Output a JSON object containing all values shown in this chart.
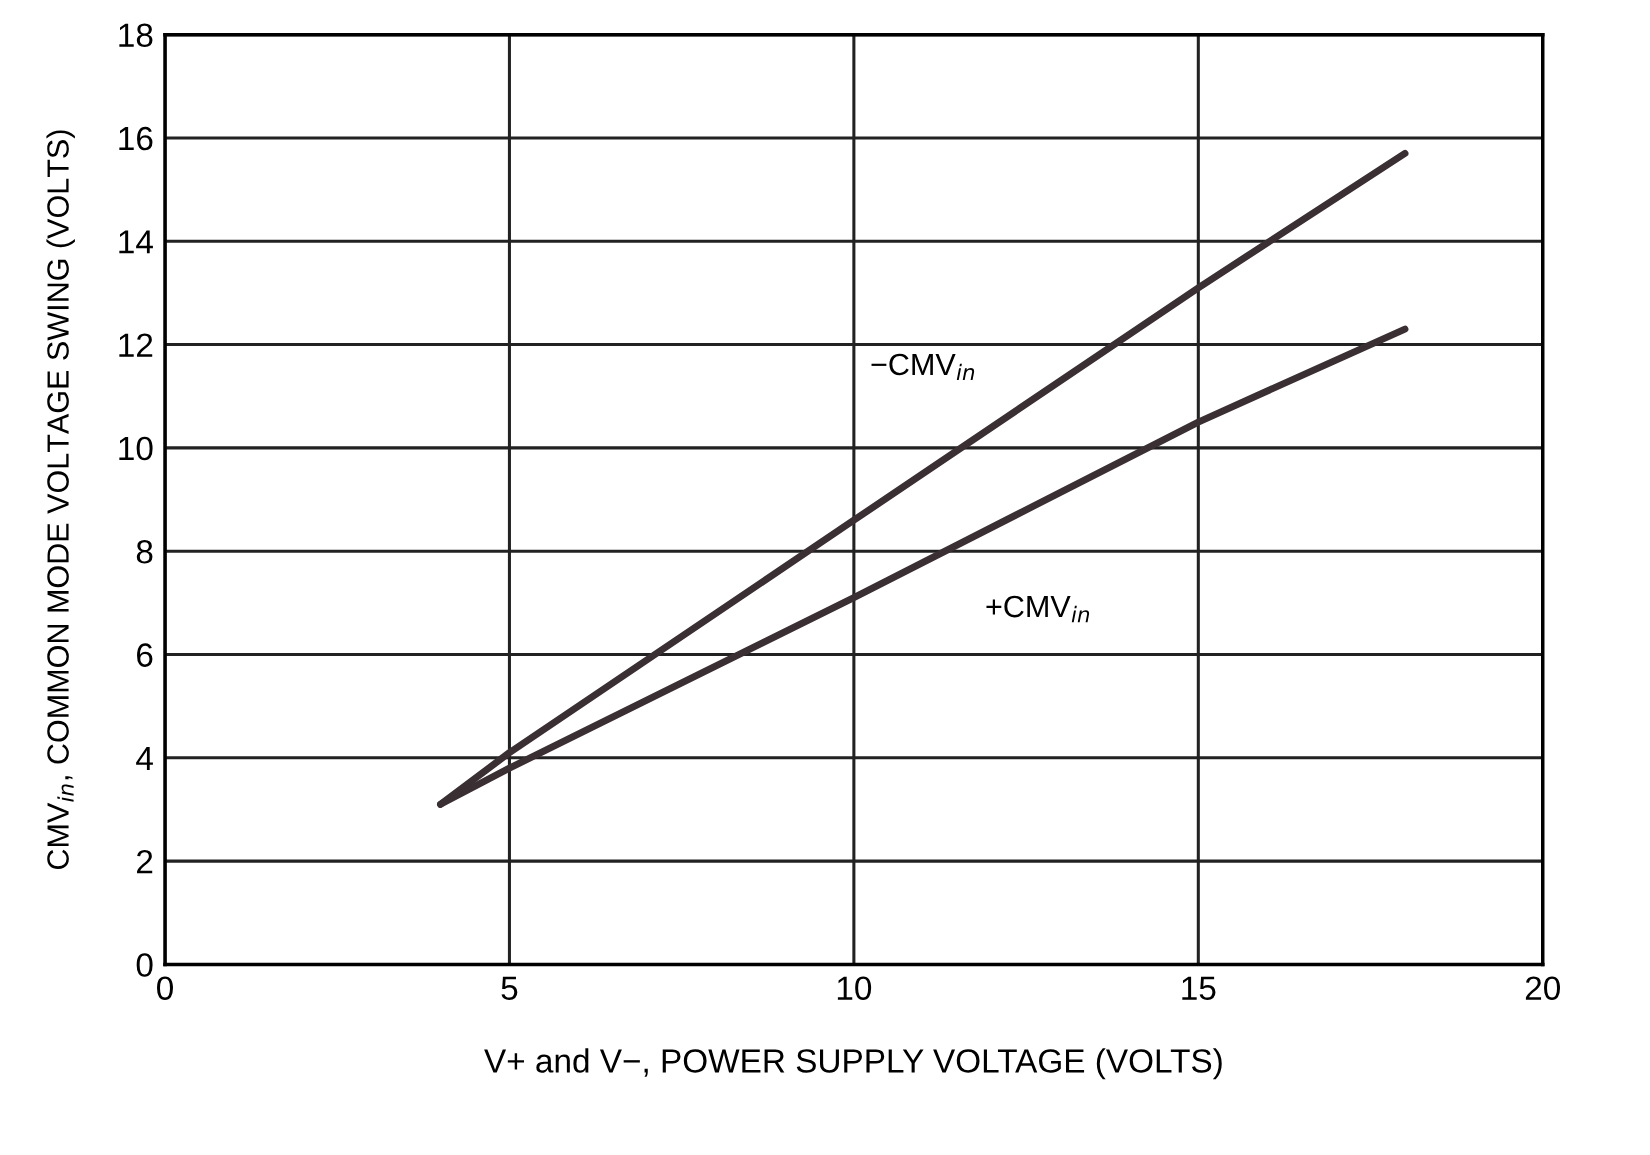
{
  "chart_data": {
    "type": "line",
    "xlabel": "V+ and V−, POWER SUPPLY VOLTAGE (VOLTS)",
    "ylabel": "CMV$_{in}$, COMMON MODE VOLTAGE SWING (VOLTS)",
    "xlim": [
      0,
      20
    ],
    "ylim": [
      0,
      18
    ],
    "xticks": [
      0,
      5,
      10,
      15,
      20
    ],
    "yticks": [
      0,
      2,
      4,
      6,
      8,
      10,
      12,
      14,
      16,
      18
    ],
    "grid": true,
    "line_style": "solid",
    "marker": "none",
    "series": [
      {
        "name": "−CMV$_{in}$",
        "color": "#3a2f33",
        "x": [
          4,
          5,
          10,
          15,
          18
        ],
        "values": [
          3.1,
          4.1,
          8.6,
          13.1,
          15.7
        ]
      },
      {
        "name": "+CMV$_{in}$",
        "color": "#3a2f33",
        "x": [
          4,
          5,
          10,
          15,
          18
        ],
        "values": [
          3.1,
          3.8,
          7.1,
          10.5,
          12.3
        ]
      }
    ]
  }
}
